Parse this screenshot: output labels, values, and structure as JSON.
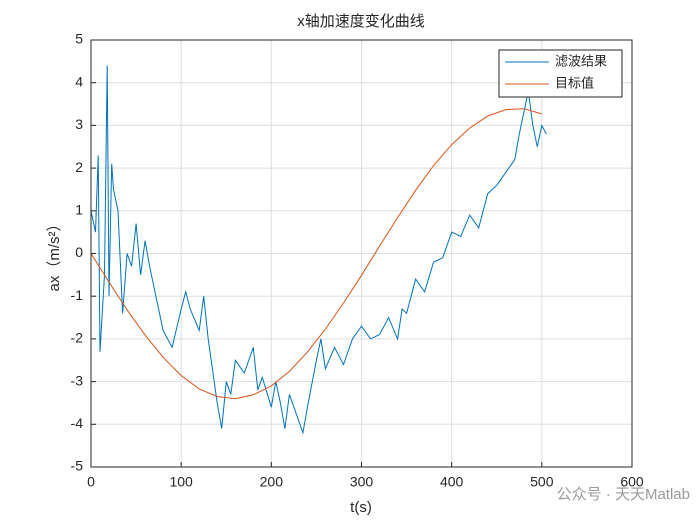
{
  "chart_data": {
    "type": "line",
    "title": "x轴加速度变化曲线",
    "xlabel": "t(s)",
    "ylabel": "ax（m/s²）",
    "xlim": [
      0,
      600
    ],
    "xticks": [
      0,
      100,
      200,
      300,
      400,
      500,
      600
    ],
    "ylim": [
      -5,
      5
    ],
    "yticks": [
      -5,
      -4,
      -3,
      -2,
      -1,
      0,
      1,
      2,
      3,
      4,
      5
    ],
    "grid": true,
    "legend": "upper right",
    "watermark": "公众号 · 天天Matlab",
    "series": [
      {
        "name": "滤波结果",
        "color": "#0072bd",
        "x": [
          0,
          5,
          8,
          10,
          15,
          18,
          20,
          23,
          25,
          30,
          35,
          40,
          45,
          50,
          55,
          60,
          65,
          70,
          80,
          90,
          100,
          105,
          110,
          120,
          125,
          130,
          140,
          145,
          150,
          155,
          160,
          170,
          180,
          185,
          190,
          200,
          205,
          210,
          215,
          220,
          230,
          235,
          240,
          250,
          255,
          260,
          270,
          280,
          290,
          300,
          310,
          320,
          330,
          340,
          345,
          350,
          360,
          370,
          380,
          390,
          400,
          410,
          420,
          430,
          440,
          450,
          460,
          470,
          475,
          480,
          485,
          490,
          495,
          500,
          505
        ],
        "values": [
          1.0,
          0.5,
          2.3,
          -2.3,
          -0.5,
          4.4,
          -1.0,
          2.1,
          1.5,
          1.0,
          -1.4,
          0,
          -0.3,
          0.7,
          -0.5,
          0.3,
          -0.3,
          -0.8,
          -1.8,
          -2.2,
          -1.3,
          -0.9,
          -1.3,
          -1.8,
          -1.0,
          -2.0,
          -3.5,
          -4.1,
          -3.0,
          -3.3,
          -2.5,
          -2.8,
          -2.2,
          -3.2,
          -2.9,
          -3.6,
          -3.0,
          -3.5,
          -4.1,
          -3.3,
          -3.9,
          -4.2,
          -3.6,
          -2.5,
          -2.0,
          -2.7,
          -2.2,
          -2.6,
          -2.0,
          -1.7,
          -2.0,
          -1.9,
          -1.5,
          -2.0,
          -1.3,
          -1.4,
          -0.6,
          -0.9,
          -0.2,
          -0.1,
          0.5,
          0.4,
          0.9,
          0.6,
          1.4,
          1.6,
          1.9,
          2.2,
          2.8,
          3.3,
          3.8,
          3.0,
          2.5,
          3.0,
          2.8
        ]
      },
      {
        "name": "目标值",
        "color": "#d95319",
        "x": [
          0,
          20,
          40,
          60,
          80,
          100,
          120,
          140,
          160,
          180,
          200,
          220,
          240,
          260,
          280,
          300,
          320,
          340,
          360,
          380,
          400,
          420,
          440,
          460,
          480,
          500
        ],
        "values": [
          0,
          -0.67,
          -1.32,
          -1.91,
          -2.43,
          -2.86,
          -3.17,
          -3.35,
          -3.4,
          -3.31,
          -3.1,
          -2.76,
          -2.31,
          -1.77,
          -1.16,
          -0.51,
          0.17,
          0.84,
          1.48,
          2.06,
          2.55,
          2.94,
          3.22,
          3.37,
          3.39,
          3.27
        ]
      }
    ]
  }
}
